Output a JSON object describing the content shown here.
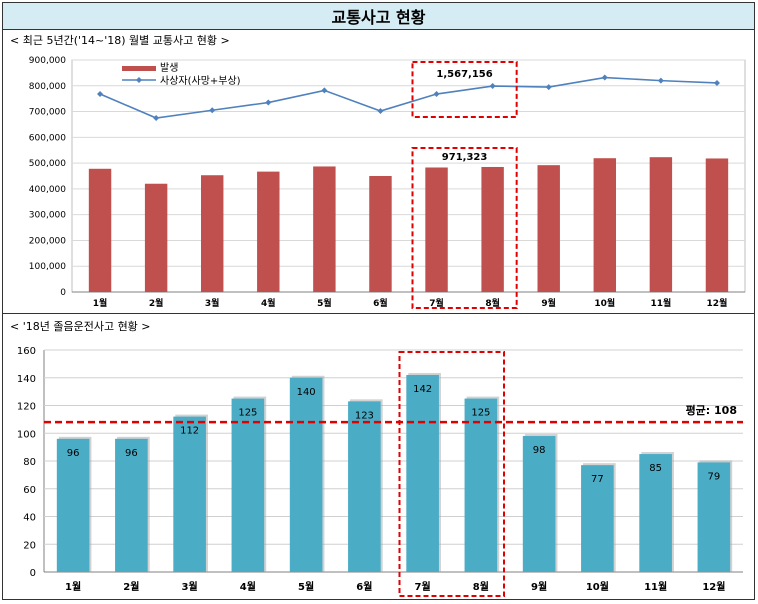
{
  "page": {
    "title": "교통사고 현황"
  },
  "chart1": {
    "subtitle": "< 최근 5년간('14~'18) 월별 교통사고 현황 >"
  },
  "chart2": {
    "subtitle": "< '18년 졸음운전사고 현황 >",
    "avg_label": "평균: 108"
  },
  "chart_data": [
    {
      "type": "bar",
      "categories": [
        "1월",
        "2월",
        "3월",
        "4월",
        "5월",
        "6월",
        "7월",
        "8월",
        "9월",
        "10월",
        "11월",
        "12월"
      ],
      "series": [
        {
          "name": "발생",
          "type": "bar",
          "color": "#c0504d",
          "values": [
            478000,
            420000,
            453000,
            467000,
            487000,
            450000,
            483000,
            485000,
            492000,
            519000,
            523000,
            518000
          ]
        },
        {
          "name": "사상자(사망+부상)",
          "type": "line",
          "color": "#4f81bd",
          "values": [
            768000,
            675000,
            705000,
            735000,
            782000,
            702000,
            768000,
            799000,
            795000,
            832000,
            820000,
            811000
          ]
        }
      ],
      "ylim": [
        0,
        900000
      ],
      "yticks": [
        "0",
        "100,000",
        "200,000",
        "300,000",
        "400,000",
        "500,000",
        "600,000",
        "700,000",
        "800,000",
        "900,000"
      ],
      "annotations": [
        "1,567,156",
        "971,323"
      ],
      "grid": true,
      "legend": "top-left"
    },
    {
      "type": "bar",
      "categories": [
        "1월",
        "2월",
        "3월",
        "4월",
        "5월",
        "6월",
        "7월",
        "8월",
        "9월",
        "10월",
        "11월",
        "12월"
      ],
      "values": [
        96,
        96,
        112,
        125,
        140,
        123,
        142,
        125,
        98,
        77,
        85,
        79
      ],
      "value_labels": [
        "96",
        "96",
        "112",
        "125",
        "140",
        "123",
        "142",
        "125",
        "98",
        "77",
        "85",
        "79"
      ],
      "ylim": [
        0,
        160
      ],
      "yticks": [
        "0",
        "20",
        "40",
        "60",
        "80",
        "100",
        "120",
        "140",
        "160"
      ],
      "average": 108,
      "color": "#4bacc6",
      "grid": true
    }
  ]
}
